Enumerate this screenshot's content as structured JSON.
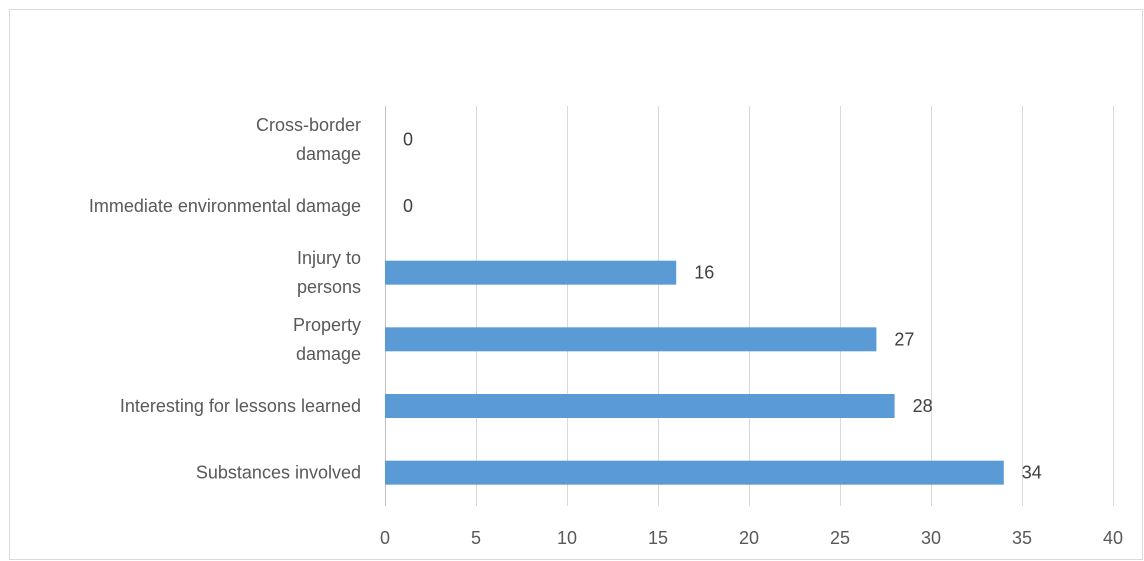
{
  "chart_data": {
    "type": "bar",
    "orientation": "horizontal",
    "categories": [
      "Substances involved",
      "Interesting for lessons learned",
      "Property damage",
      "Injury to persons",
      "Immediate environmental damage",
      "Cross-border damage"
    ],
    "category_lines": [
      [
        "Substances involved"
      ],
      [
        "Interesting for lessons learned"
      ],
      [
        "Property",
        "damage"
      ],
      [
        "Injury to",
        "persons"
      ],
      [
        "Immediate environmental damage"
      ],
      [
        "Cross-border",
        "damage"
      ]
    ],
    "values": [
      34,
      28,
      27,
      16,
      0,
      0
    ],
    "data_labels": [
      "34",
      "28",
      "27",
      "16",
      "0",
      "0"
    ],
    "xlim": [
      0,
      40
    ],
    "xticks": [
      "0",
      "5",
      "10",
      "15",
      "20",
      "25",
      "30",
      "35",
      "40"
    ],
    "xtick_values": [
      0,
      5,
      10,
      15,
      20,
      25,
      30,
      35,
      40
    ],
    "title": "",
    "xlabel": "",
    "ylabel": "",
    "grid": "vertical",
    "legend": "none",
    "bar_color": "#5b9bd5",
    "grid_color": "#d9d9d9"
  }
}
